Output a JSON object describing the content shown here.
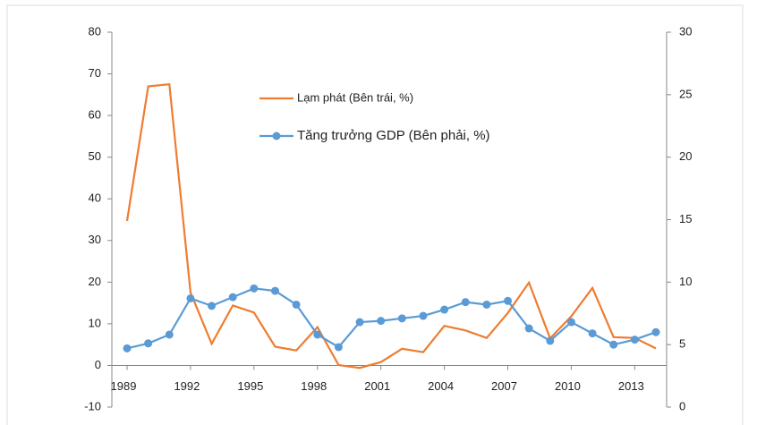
{
  "chart_data": {
    "type": "line",
    "categories": [
      "1989",
      null,
      null,
      "1992",
      null,
      null,
      "1995",
      null,
      null,
      "1998",
      null,
      null,
      "2001",
      null,
      null,
      "2004",
      null,
      null,
      "2007",
      null,
      null,
      "2010",
      null,
      null,
      "2013",
      null
    ],
    "series": [
      {
        "name": "Lạm phát (Bên trái, %)",
        "color": "#ed7d31",
        "axis": "y",
        "marker": false,
        "values": [
          34.7,
          67,
          67.5,
          17.5,
          5.2,
          14.4,
          12.7,
          4.5,
          3.6,
          9.2,
          0.1,
          -0.6,
          0.8,
          4,
          3.2,
          9.5,
          8.4,
          6.6,
          12.6,
          19.9,
          6.5,
          11.8,
          18.6,
          6.8,
          6.6,
          4.1
        ]
      },
      {
        "name": "Tăng trưởng GDP (Bên phải, %)",
        "color": "#5b9bd5",
        "axis": "y2",
        "marker": true,
        "values": [
          4.7,
          5.1,
          5.8,
          8.7,
          8.1,
          8.8,
          9.5,
          9.3,
          8.2,
          5.8,
          4.8,
          6.8,
          6.9,
          7.1,
          7.3,
          7.8,
          8.4,
          8.2,
          8.5,
          6.3,
          5.3,
          6.8,
          5.9,
          5.0,
          5.4,
          6.0
        ]
      }
    ],
    "ylim": [
      -10,
      80
    ],
    "yticks": [
      -10,
      0,
      10,
      20,
      30,
      40,
      50,
      60,
      70,
      80
    ],
    "y2lim": [
      0,
      30
    ],
    "y2ticks": [
      0,
      5,
      10,
      15,
      20,
      25,
      30
    ],
    "grid": false
  }
}
